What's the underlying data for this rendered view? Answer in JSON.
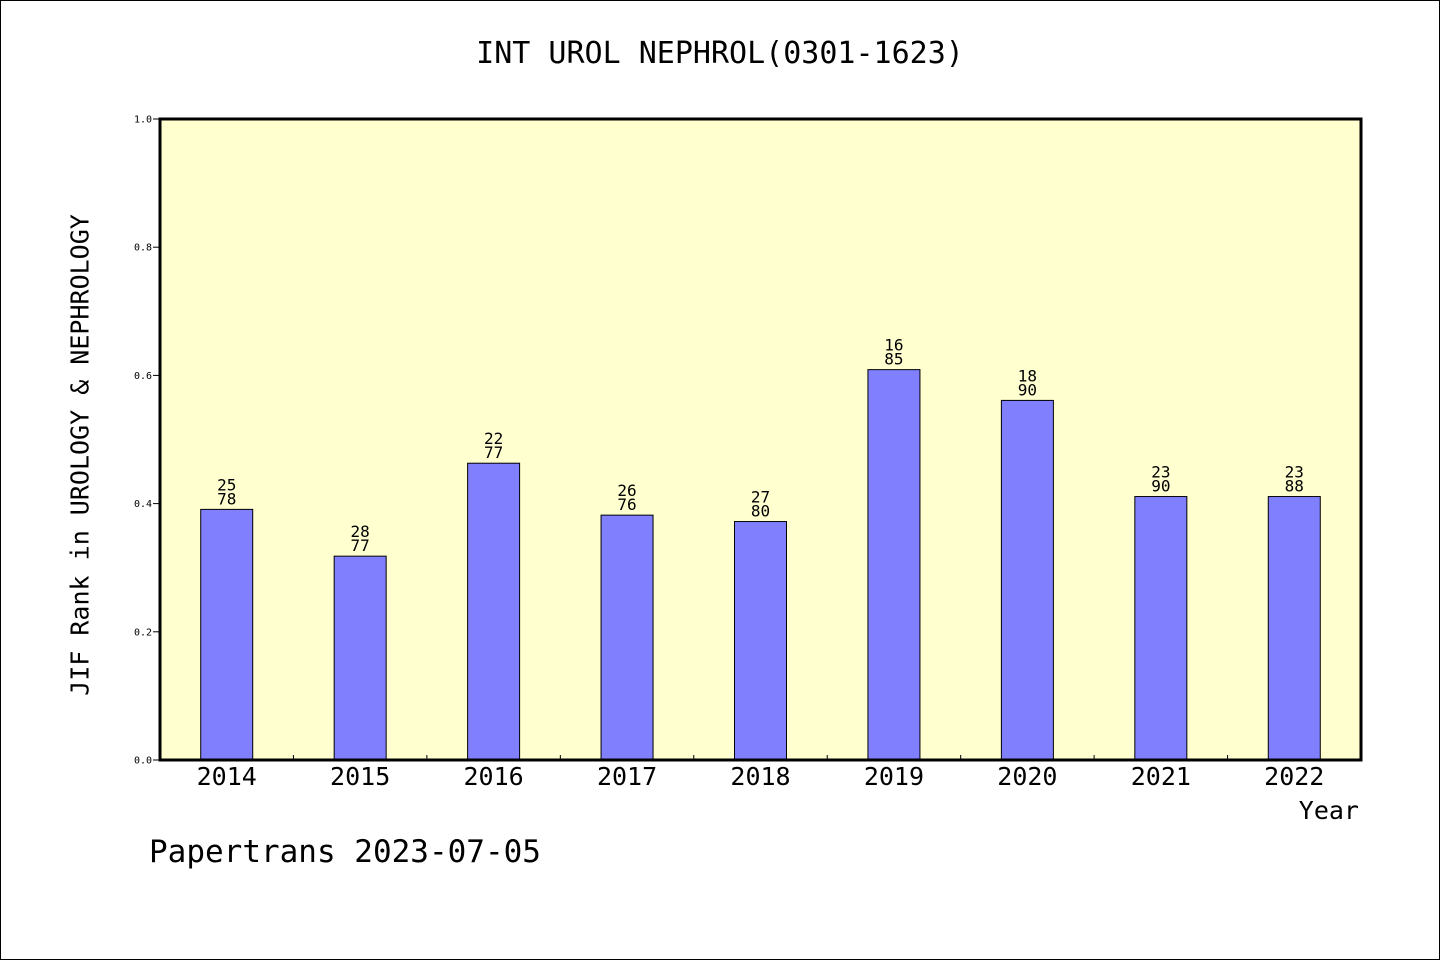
{
  "chart_data": {
    "type": "bar",
    "title": "INT UROL NEPHROL(0301-1623)",
    "xlabel": "Year",
    "ylabel": "JIF Rank in UROLOGY & NEPHROLOGY",
    "ylim": [
      0.0,
      1.0
    ],
    "yticks": [
      "0.0",
      "0.2",
      "0.4",
      "0.6",
      "0.8",
      "1.0"
    ],
    "categories": [
      "2014",
      "2015",
      "2016",
      "2017",
      "2018",
      "2019",
      "2020",
      "2021",
      "2022"
    ],
    "values": [
      0.391,
      0.318,
      0.463,
      0.382,
      0.372,
      0.609,
      0.561,
      0.411,
      0.411
    ],
    "rank_labels": [
      {
        "rank": "25",
        "total": "78"
      },
      {
        "rank": "28",
        "total": "77"
      },
      {
        "rank": "22",
        "total": "77"
      },
      {
        "rank": "26",
        "total": "76"
      },
      {
        "rank": "27",
        "total": "80"
      },
      {
        "rank": "16",
        "total": "85"
      },
      {
        "rank": "18",
        "total": "90"
      },
      {
        "rank": "23",
        "total": "90"
      },
      {
        "rank": "23",
        "total": "88"
      }
    ],
    "grid": false,
    "colors": {
      "bar": "#8080ff",
      "plot_background": "#ffffd0",
      "frame": "#000000"
    }
  },
  "footer": "Papertrans 2023-07-05"
}
